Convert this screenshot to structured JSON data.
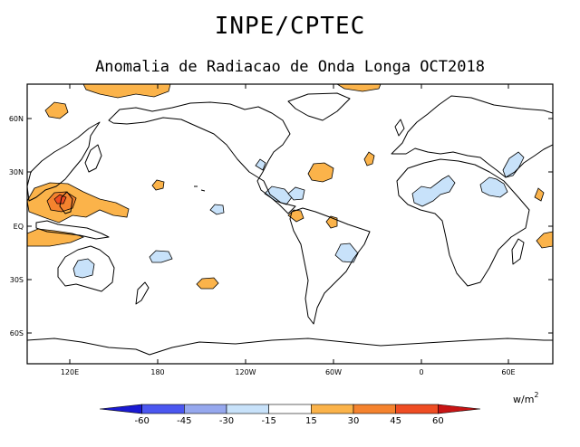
{
  "header": {
    "title": "INPE/CPTEC",
    "subtitle": "Anomalia de Radiacao de Onda Longa OCT2018"
  },
  "map": {
    "lat_labels": [
      "60N",
      "30N",
      "EQ",
      "30S",
      "60S"
    ],
    "lon_labels": [
      "120E",
      "180",
      "120W",
      "60W",
      "0",
      "60E"
    ],
    "anomaly_regions": [
      {
        "name": "arctic-positive",
        "level": "15 to 30"
      },
      {
        "name": "western-pacific-positive",
        "level": "15 to 45"
      },
      {
        "name": "mexico-negative",
        "level": "-15 to -30"
      },
      {
        "name": "north-atlantic-positive",
        "level": "15 to 30"
      },
      {
        "name": "west-africa-negative",
        "level": "-15 to -30"
      },
      {
        "name": "australia-negative",
        "level": "-15 to -30"
      },
      {
        "name": "brazil-negative",
        "level": "-15 to -30"
      }
    ]
  },
  "units": {
    "label": "w/m",
    "exp": "2"
  },
  "colorbar": {
    "colors": [
      "#1a1ad2",
      "#4b57f0",
      "#96a8ee",
      "#c8e2fa",
      "#ffffff",
      "#fbb34a",
      "#f5832e",
      "#ef4d23",
      "#c81414"
    ],
    "ticks": [
      "-60",
      "-45",
      "-30",
      "-15",
      "15",
      "30",
      "45",
      "60"
    ]
  }
}
